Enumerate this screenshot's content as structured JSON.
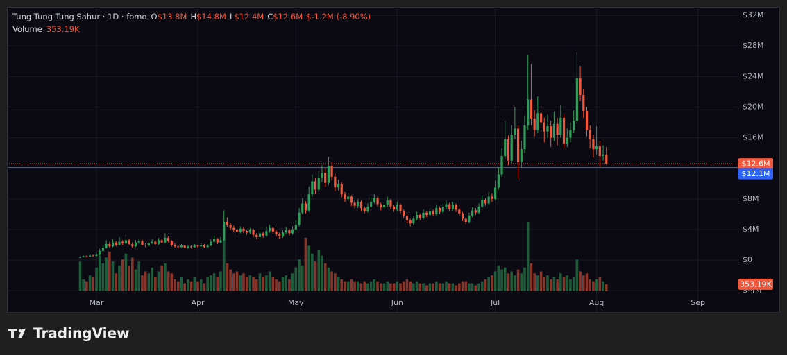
{
  "chart_data": {
    "type": "candlestick",
    "legend": {
      "symbol": "Tung Tung Tung Sahur · 1D · fomo",
      "ohlc_keys": [
        "O",
        "H",
        "L",
        "C"
      ],
      "ohlc_labels": [
        "$13.8M",
        "$14.8M",
        "$12.4M",
        "$12.6M"
      ],
      "change": "$-1.2M (-8.90%)",
      "volume_name": "Volume",
      "volume_label": "353.19K"
    },
    "up_color": "#2e9e5b",
    "down_color": "#f1583c",
    "candles": {
      "open": [
        0.35,
        0.4,
        0.5,
        0.45,
        0.6,
        0.55,
        0.7,
        1.2,
        1.6,
        2.1,
        1.8,
        2.3,
        2.0,
        2.4,
        2.2,
        2.6,
        2.1,
        1.8,
        2.3,
        2.5,
        2.0,
        1.9,
        2.2,
        2.4,
        2.1,
        2.6,
        2.3,
        2.9,
        2.5,
        2.0,
        1.8,
        1.7,
        1.9,
        1.6,
        1.8,
        1.7,
        1.9,
        1.8,
        2.0,
        1.7,
        1.9,
        2.4,
        2.8,
        2.3,
        2.6,
        5.0,
        4.6,
        4.2,
        4.0,
        3.7,
        4.1,
        3.8,
        3.6,
        3.9,
        3.3,
        3.0,
        3.5,
        3.2,
        3.8,
        4.2,
        3.7,
        3.4,
        3.1,
        3.6,
        3.9,
        3.5,
        4.0,
        4.6,
        6.2,
        7.4,
        6.5,
        8.6,
        10.3,
        9.2,
        10.8,
        11.4,
        10.1,
        12.3,
        10.9,
        9.5,
        9.9,
        8.6,
        8.0,
        8.3,
        7.5,
        7.1,
        7.6,
        6.8,
        6.4,
        7.0,
        7.6,
        8.1,
        7.3,
        6.9,
        7.2,
        7.8,
        7.0,
        6.6,
        7.2,
        6.4,
        5.8,
        5.2,
        4.8,
        5.4,
        5.9,
        5.5,
        6.2,
        5.9,
        6.4,
        6.0,
        6.8,
        6.3,
        6.9,
        7.3,
        6.7,
        7.2,
        6.6,
        6.1,
        5.4,
        5.0,
        5.8,
        6.5,
        6.2,
        7.0,
        7.9,
        7.4,
        8.3,
        8.0,
        9.5,
        11.2,
        13.6,
        15.8,
        13.0,
        16.4,
        17.2,
        12.8,
        14.5,
        17.6,
        21.0,
        18.5,
        17.0,
        19.2,
        18.0,
        16.8,
        17.5,
        16.0,
        17.8,
        16.4,
        18.6,
        15.2,
        16.0,
        17.0,
        18.2,
        23.8,
        21.6,
        19.5,
        17.0,
        15.8,
        14.5,
        14.9,
        13.6,
        13.8
      ],
      "high": [
        0.5,
        0.6,
        0.6,
        0.7,
        0.7,
        0.9,
        1.5,
        1.9,
        2.6,
        2.4,
        2.7,
        2.5,
        3.0,
        2.6,
        3.3,
        2.8,
        2.3,
        2.6,
        2.8,
        2.7,
        2.2,
        2.4,
        2.7,
        2.6,
        2.9,
        2.8,
        3.5,
        3.1,
        2.6,
        2.2,
        1.9,
        2.1,
        2.0,
        2.0,
        1.9,
        2.1,
        2.0,
        2.2,
        2.1,
        2.1,
        2.7,
        3.2,
        2.9,
        3.0,
        6.5,
        5.6,
        4.9,
        4.5,
        4.3,
        4.4,
        4.3,
        4.0,
        4.2,
        4.1,
        3.5,
        3.8,
        3.7,
        4.3,
        4.6,
        4.4,
        3.9,
        3.6,
        3.9,
        4.3,
        4.1,
        4.4,
        5.2,
        6.8,
        8.1,
        7.7,
        9.6,
        11.2,
        10.8,
        11.6,
        12.4,
        12.0,
        13.5,
        12.8,
        11.3,
        10.5,
        10.2,
        8.9,
        8.8,
        8.5,
        7.8,
        8.0,
        7.8,
        7.0,
        7.4,
        8.2,
        8.6,
        8.3,
        7.5,
        7.6,
        8.3,
        8.0,
        7.2,
        7.6,
        7.4,
        6.6,
        6.0,
        5.4,
        5.7,
        6.3,
        6.1,
        6.6,
        6.4,
        6.8,
        6.6,
        7.2,
        7.0,
        7.3,
        7.8,
        7.5,
        7.6,
        7.4,
        6.8,
        6.3,
        5.6,
        6.2,
        6.9,
        6.8,
        7.4,
        8.5,
        8.1,
        8.9,
        8.7,
        10.4,
        12.1,
        14.6,
        18.2,
        16.3,
        17.6,
        20.0,
        17.6,
        15.6,
        18.8,
        26.8,
        25.6,
        19.6,
        21.4,
        20.1,
        18.6,
        19.0,
        18.2,
        19.4,
        18.6,
        20.2,
        19.0,
        17.2,
        18.0,
        19.6,
        27.2,
        25.4,
        22.4,
        20.0,
        17.6,
        16.4,
        17.5,
        15.6,
        15.0,
        14.8
      ],
      "low": [
        0.3,
        0.35,
        0.4,
        0.4,
        0.5,
        0.5,
        0.6,
        1.1,
        1.5,
        1.6,
        1.7,
        1.8,
        1.9,
        2.0,
        2.1,
        2.0,
        1.6,
        1.7,
        2.1,
        1.9,
        1.7,
        1.8,
        2.1,
        2.0,
        2.0,
        2.2,
        2.2,
        2.3,
        1.8,
        1.6,
        1.5,
        1.6,
        1.5,
        1.5,
        1.5,
        1.6,
        1.6,
        1.7,
        1.6,
        1.6,
        1.8,
        2.3,
        2.1,
        2.2,
        2.5,
        4.3,
        3.9,
        3.7,
        3.4,
        3.5,
        3.5,
        3.3,
        3.4,
        3.0,
        2.7,
        2.8,
        2.9,
        3.0,
        3.6,
        3.4,
        3.1,
        2.8,
        2.9,
        3.4,
        3.2,
        3.3,
        3.8,
        4.4,
        6.0,
        6.1,
        6.3,
        8.3,
        8.6,
        8.9,
        10.2,
        9.6,
        9.8,
        10.4,
        9.0,
        9.1,
        8.2,
        7.6,
        7.7,
        7.1,
        6.7,
        6.8,
        6.4,
        6.1,
        6.2,
        6.8,
        7.4,
        7.0,
        6.5,
        6.6,
        7.0,
        6.7,
        6.3,
        6.4,
        6.1,
        5.5,
        4.9,
        4.4,
        4.6,
        5.2,
        5.2,
        5.3,
        5.6,
        5.7,
        5.7,
        5.8,
        6.0,
        6.1,
        6.7,
        6.4,
        6.5,
        6.3,
        5.8,
        5.1,
        4.7,
        4.8,
        5.6,
        5.9,
        6.0,
        6.8,
        7.1,
        7.2,
        7.6,
        7.8,
        9.2,
        10.9,
        13.2,
        12.4,
        12.6,
        15.8,
        10.6,
        12.0,
        14.0,
        17.0,
        17.6,
        16.2,
        16.6,
        17.2,
        15.4,
        16.0,
        14.8,
        15.6,
        15.0,
        16.0,
        14.6,
        14.8,
        15.4,
        16.6,
        17.8,
        20.8,
        18.6,
        16.2,
        14.6,
        13.4,
        13.8,
        12.2,
        13.0,
        12.4
      ],
      "close": [
        0.4,
        0.5,
        0.45,
        0.6,
        0.55,
        0.7,
        1.2,
        1.6,
        2.1,
        1.8,
        2.3,
        2.0,
        2.4,
        2.2,
        2.6,
        2.1,
        1.8,
        2.3,
        2.5,
        2.0,
        1.9,
        2.2,
        2.4,
        2.1,
        2.6,
        2.3,
        2.9,
        2.5,
        2.0,
        1.8,
        1.7,
        1.9,
        1.6,
        1.8,
        1.7,
        1.9,
        1.8,
        2.0,
        1.7,
        1.9,
        2.4,
        2.8,
        2.3,
        2.6,
        5.0,
        4.6,
        4.2,
        4.0,
        3.7,
        4.1,
        3.8,
        3.6,
        3.9,
        3.3,
        3.0,
        3.5,
        3.2,
        3.8,
        4.2,
        3.7,
        3.4,
        3.1,
        3.6,
        3.9,
        3.5,
        4.0,
        4.6,
        6.2,
        7.4,
        6.5,
        8.6,
        10.3,
        9.2,
        10.8,
        11.4,
        10.1,
        12.3,
        10.9,
        9.5,
        9.9,
        8.6,
        8.0,
        8.3,
        7.5,
        7.1,
        7.6,
        6.8,
        6.4,
        7.0,
        7.6,
        8.1,
        7.3,
        6.9,
        7.2,
        7.8,
        7.0,
        6.6,
        7.2,
        6.4,
        5.8,
        5.2,
        4.8,
        5.4,
        5.9,
        5.5,
        6.2,
        5.9,
        6.4,
        6.0,
        6.8,
        6.3,
        6.9,
        7.3,
        6.7,
        7.2,
        6.6,
        6.1,
        5.4,
        5.0,
        5.8,
        6.5,
        6.2,
        7.0,
        7.9,
        7.4,
        8.3,
        8.0,
        9.5,
        11.2,
        13.6,
        15.8,
        13.0,
        16.4,
        17.2,
        12.8,
        14.5,
        17.6,
        21.0,
        18.5,
        17.0,
        19.2,
        18.0,
        16.8,
        17.5,
        16.0,
        17.8,
        16.4,
        18.6,
        15.2,
        16.0,
        17.0,
        18.2,
        23.8,
        21.6,
        19.5,
        17.0,
        15.8,
        14.5,
        14.9,
        13.6,
        13.8,
        12.6
      ]
    },
    "volume": {
      "values": [
        1500000,
        600000,
        500000,
        800000,
        700000,
        1200000,
        1800000,
        1400000,
        1700000,
        2000000,
        1500000,
        900000,
        1300000,
        1600000,
        1900000,
        1300000,
        1700000,
        1100000,
        1500000,
        800000,
        1000000,
        900000,
        1200000,
        700000,
        1000000,
        1300000,
        1400000,
        1000000,
        900000,
        600000,
        500000,
        700000,
        400000,
        600000,
        500000,
        700000,
        500000,
        600000,
        400000,
        700000,
        800000,
        900000,
        700000,
        1000000,
        3300000,
        1400000,
        1100000,
        900000,
        1000000,
        800000,
        900000,
        700000,
        800000,
        700000,
        600000,
        900000,
        700000,
        800000,
        1000000,
        700000,
        600000,
        500000,
        700000,
        800000,
        600000,
        900000,
        1200000,
        1600000,
        1300000,
        2700000,
        2300000,
        1900000,
        1500000,
        2100000,
        1800000,
        1400000,
        1200000,
        1000000,
        900000,
        700000,
        600000,
        500000,
        500000,
        600000,
        500000,
        500000,
        400000,
        500000,
        400000,
        500000,
        600000,
        500000,
        400000,
        400000,
        500000,
        400000,
        400000,
        500000,
        400000,
        500000,
        600000,
        500000,
        400000,
        500000,
        400000,
        400000,
        300000,
        400000,
        400000,
        500000,
        400000,
        400000,
        500000,
        400000,
        400000,
        300000,
        400000,
        500000,
        500000,
        400000,
        400000,
        300000,
        400000,
        500000,
        600000,
        700000,
        800000,
        1000000,
        1300000,
        1100000,
        1200000,
        900000,
        1000000,
        800000,
        1100000,
        900000,
        1200000,
        3500000,
        1400000,
        900000,
        800000,
        1000000,
        700000,
        800000,
        600000,
        700000,
        600000,
        900000,
        700000,
        800000,
        600000,
        700000,
        1600000,
        1000000,
        800000,
        900000,
        600000,
        500000,
        600000,
        700000,
        500000,
        353190
      ]
    },
    "ylim": [
      -4.8,
      33.1
    ],
    "yticks": [
      {
        "value": -4,
        "label": "$-4M"
      },
      {
        "value": 0,
        "label": "$0"
      },
      {
        "value": 4,
        "label": "$4M"
      },
      {
        "value": 8,
        "label": "$8M"
      },
      {
        "value": 12,
        "label": "$12M"
      },
      {
        "value": 16,
        "label": "$16M"
      },
      {
        "value": 20,
        "label": "$20M"
      },
      {
        "value": 24,
        "label": "$24M"
      },
      {
        "value": 28,
        "label": "$28M"
      },
      {
        "value": 32,
        "label": "$32M"
      }
    ],
    "xticks": [
      {
        "value": 5,
        "label": "Mar"
      },
      {
        "value": 36,
        "label": "Apr"
      },
      {
        "value": 66,
        "label": "May"
      },
      {
        "value": 97,
        "label": "Jun"
      },
      {
        "value": 127,
        "label": "Jul"
      },
      {
        "value": 158,
        "label": "Aug"
      },
      {
        "value": 189,
        "label": "Sep"
      }
    ],
    "grid": true,
    "last_price_label": "$12.6M",
    "reference_line": {
      "value": 12.1,
      "label": "$12.1M",
      "color": "#2962ff"
    }
  },
  "footer": {
    "brand": "TradingView"
  }
}
